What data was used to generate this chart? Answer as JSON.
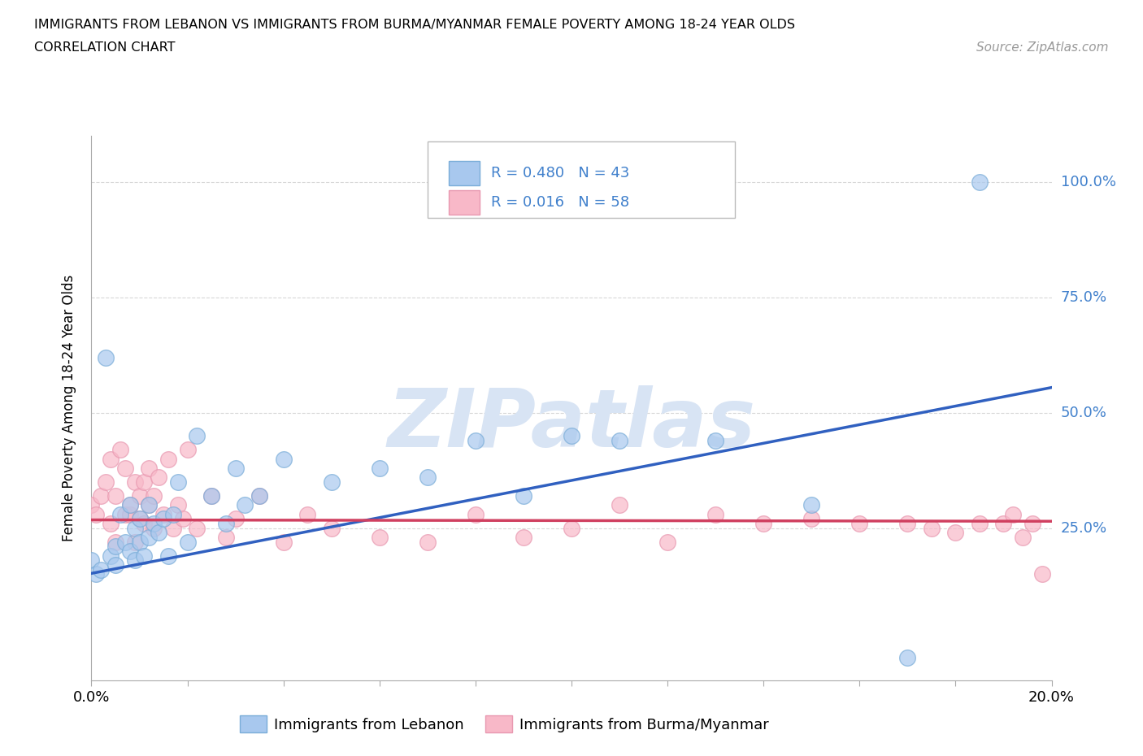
{
  "title_line1": "IMMIGRANTS FROM LEBANON VS IMMIGRANTS FROM BURMA/MYANMAR FEMALE POVERTY AMONG 18-24 YEAR OLDS",
  "title_line2": "CORRELATION CHART",
  "source_text": "Source: ZipAtlas.com",
  "ylabel": "Female Poverty Among 18-24 Year Olds",
  "xlim": [
    0.0,
    0.2
  ],
  "ylim": [
    -0.08,
    1.1
  ],
  "ytick_values": [
    0.25,
    0.5,
    0.75,
    1.0
  ],
  "ytick_right_labels": [
    "25.0%",
    "50.0%",
    "75.0%",
    "100.0%"
  ],
  "xtick_values": [
    0.0,
    0.02,
    0.04,
    0.06,
    0.08,
    0.1,
    0.12,
    0.14,
    0.16,
    0.18,
    0.2
  ],
  "lebanon_color_face": "#A8C8EE",
  "lebanon_color_edge": "#7AADD8",
  "burma_color_face": "#F8B8C8",
  "burma_color_edge": "#E898B0",
  "lebanon_R": 0.48,
  "lebanon_N": 43,
  "burma_R": 0.016,
  "burma_N": 58,
  "lebanon_line_color": "#3060C0",
  "burma_line_color": "#D04060",
  "watermark_color": "#D8E4F4",
  "legend_text_color": "#4080CC",
  "background_color": "#FFFFFF",
  "grid_color": "#D8D8D8",
  "right_tick_color": "#4080CC",
  "lebanon_scatter_x": [
    0.0,
    0.001,
    0.002,
    0.003,
    0.004,
    0.005,
    0.005,
    0.006,
    0.007,
    0.008,
    0.008,
    0.009,
    0.009,
    0.01,
    0.01,
    0.011,
    0.012,
    0.012,
    0.013,
    0.014,
    0.015,
    0.016,
    0.017,
    0.018,
    0.02,
    0.022,
    0.025,
    0.028,
    0.03,
    0.032,
    0.035,
    0.04,
    0.05,
    0.06,
    0.07,
    0.08,
    0.09,
    0.1,
    0.11,
    0.13,
    0.15,
    0.17,
    0.185
  ],
  "lebanon_scatter_y": [
    0.18,
    0.15,
    0.16,
    0.62,
    0.19,
    0.21,
    0.17,
    0.28,
    0.22,
    0.3,
    0.2,
    0.18,
    0.25,
    0.22,
    0.27,
    0.19,
    0.23,
    0.3,
    0.26,
    0.24,
    0.27,
    0.19,
    0.28,
    0.35,
    0.22,
    0.45,
    0.32,
    0.26,
    0.38,
    0.3,
    0.32,
    0.4,
    0.35,
    0.38,
    0.36,
    0.44,
    0.32,
    0.45,
    0.44,
    0.44,
    0.3,
    -0.03,
    1.0
  ],
  "burma_scatter_x": [
    0.0,
    0.001,
    0.002,
    0.003,
    0.004,
    0.004,
    0.005,
    0.005,
    0.006,
    0.007,
    0.007,
    0.008,
    0.008,
    0.009,
    0.009,
    0.01,
    0.01,
    0.011,
    0.011,
    0.012,
    0.012,
    0.013,
    0.013,
    0.014,
    0.015,
    0.016,
    0.017,
    0.018,
    0.019,
    0.02,
    0.022,
    0.025,
    0.028,
    0.03,
    0.035,
    0.04,
    0.045,
    0.05,
    0.06,
    0.07,
    0.08,
    0.09,
    0.1,
    0.11,
    0.12,
    0.13,
    0.14,
    0.15,
    0.16,
    0.17,
    0.175,
    0.18,
    0.185,
    0.19,
    0.192,
    0.194,
    0.196,
    0.198
  ],
  "burma_scatter_y": [
    0.3,
    0.28,
    0.32,
    0.35,
    0.26,
    0.4,
    0.32,
    0.22,
    0.42,
    0.28,
    0.38,
    0.28,
    0.3,
    0.35,
    0.22,
    0.32,
    0.27,
    0.35,
    0.26,
    0.3,
    0.38,
    0.32,
    0.25,
    0.36,
    0.28,
    0.4,
    0.25,
    0.3,
    0.27,
    0.42,
    0.25,
    0.32,
    0.23,
    0.27,
    0.32,
    0.22,
    0.28,
    0.25,
    0.23,
    0.22,
    0.28,
    0.23,
    0.25,
    0.3,
    0.22,
    0.28,
    0.26,
    0.27,
    0.26,
    0.26,
    0.25,
    0.24,
    0.26,
    0.26,
    0.28,
    0.23,
    0.26,
    0.15
  ]
}
